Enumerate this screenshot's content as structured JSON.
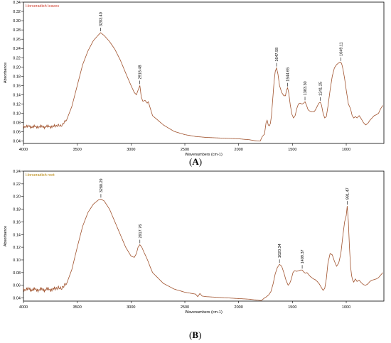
{
  "chart_data": [
    {
      "type": "line",
      "panel_letter": "A",
      "legend": "Horseradish leaves",
      "xlabel": "Wavenumbers (cm-1)",
      "ylabel": "Absorbance",
      "xlim": [
        4000,
        650
      ],
      "ylim": [
        0.035,
        0.34
      ],
      "x_ticks": [
        4000,
        3500,
        3000,
        2500,
        2000,
        1500,
        1000
      ],
      "y_ticks": [
        0.04,
        0.06,
        0.08,
        0.1,
        0.12,
        0.14,
        0.16,
        0.18,
        0.2,
        0.22,
        0.24,
        0.26,
        0.28,
        0.3,
        0.32,
        0.34
      ],
      "y_tick_labels": [
        "0.04",
        "0.06",
        "0.08",
        "0.10",
        "0.12",
        "0.14",
        "0.16",
        "0.18",
        "0.20",
        "0.22",
        "0.24",
        "0.26",
        "0.28",
        "0.30",
        "0.32",
        "0.34"
      ],
      "line_color": "#a0522d",
      "legend_color": "#d04030",
      "grid": false,
      "peak_labels": [
        {
          "x": 3283.4,
          "y": 0.274,
          "text": "3283.40"
        },
        {
          "x": 2918.48,
          "y": 0.16,
          "text": "2918.48"
        },
        {
          "x": 1647.58,
          "y": 0.198,
          "text": "1647.58"
        },
        {
          "x": 1544.65,
          "y": 0.155,
          "text": "1544.65"
        },
        {
          "x": 1383.3,
          "y": 0.125,
          "text": "1383.30"
        },
        {
          "x": 1241.25,
          "y": 0.124,
          "text": "1241.25"
        },
        {
          "x": 1049.11,
          "y": 0.21,
          "text": "1049.11"
        }
      ],
      "series": [
        {
          "x": [
            4000,
            3900,
            3800,
            3700,
            3650,
            3600,
            3550,
            3500,
            3450,
            3400,
            3350,
            3300,
            3283,
            3250,
            3200,
            3150,
            3100,
            3050,
            3000,
            2970,
            2950,
            2935,
            2918,
            2905,
            2890,
            2870,
            2850,
            2840,
            2820,
            2800,
            2700,
            2600,
            2500,
            2400,
            2300,
            2200,
            2100,
            2000,
            1900,
            1850,
            1800,
            1780,
            1760,
            1745,
            1735,
            1725,
            1715,
            1705,
            1695,
            1685,
            1670,
            1660,
            1648,
            1635,
            1620,
            1600,
            1580,
            1565,
            1555,
            1545,
            1535,
            1520,
            1505,
            1490,
            1475,
            1460,
            1445,
            1430,
            1410,
            1395,
            1383,
            1370,
            1355,
            1340,
            1320,
            1300,
            1285,
            1270,
            1255,
            1241,
            1230,
            1215,
            1200,
            1185,
            1170,
            1150,
            1130,
            1110,
            1090,
            1075,
            1060,
            1049,
            1040,
            1030,
            1015,
            1000,
            980,
            960,
            945,
            930,
            915,
            900,
            880,
            860,
            840,
            820,
            800,
            780,
            760,
            740,
            720,
            700,
            680,
            660
          ],
          "y": [
            0.072,
            0.071,
            0.071,
            0.072,
            0.074,
            0.085,
            0.115,
            0.16,
            0.205,
            0.235,
            0.257,
            0.27,
            0.274,
            0.268,
            0.255,
            0.238,
            0.215,
            0.187,
            0.16,
            0.145,
            0.14,
            0.15,
            0.16,
            0.135,
            0.126,
            0.128,
            0.122,
            0.125,
            0.11,
            0.095,
            0.075,
            0.061,
            0.054,
            0.05,
            0.048,
            0.047,
            0.046,
            0.045,
            0.043,
            0.041,
            0.04,
            0.05,
            0.055,
            0.08,
            0.085,
            0.075,
            0.073,
            0.078,
            0.095,
            0.125,
            0.17,
            0.19,
            0.198,
            0.185,
            0.16,
            0.145,
            0.138,
            0.138,
            0.15,
            0.155,
            0.145,
            0.118,
            0.098,
            0.09,
            0.095,
            0.11,
            0.12,
            0.122,
            0.12,
            0.122,
            0.125,
            0.118,
            0.108,
            0.105,
            0.103,
            0.103,
            0.108,
            0.115,
            0.122,
            0.124,
            0.118,
            0.1,
            0.09,
            0.093,
            0.115,
            0.15,
            0.18,
            0.198,
            0.205,
            0.208,
            0.21,
            0.21,
            0.205,
            0.195,
            0.175,
            0.15,
            0.12,
            0.11,
            0.095,
            0.09,
            0.093,
            0.09,
            0.095,
            0.088,
            0.08,
            0.075,
            0.078,
            0.085,
            0.09,
            0.095,
            0.097,
            0.1,
            0.11,
            0.117
          ]
        }
      ]
    },
    {
      "type": "line",
      "panel_letter": "B",
      "legend": "Horseradish root",
      "xlabel": "Wavenumbers (cm-1)",
      "ylabel": "Absorbance",
      "xlim": [
        4000,
        650
      ],
      "ylim": [
        0.035,
        0.24
      ],
      "x_ticks": [
        4000,
        3500,
        3000,
        2500,
        2000,
        1500,
        1000
      ],
      "y_ticks": [
        0.04,
        0.06,
        0.08,
        0.1,
        0.12,
        0.14,
        0.16,
        0.18,
        0.2,
        0.22,
        0.24
      ],
      "y_tick_labels": [
        "0.04",
        "0.06",
        "0.08",
        "0.10",
        "0.12",
        "0.14",
        "0.16",
        "0.18",
        "0.20",
        "0.22",
        "0.24"
      ],
      "line_color": "#a0522d",
      "legend_color": "#b8860b",
      "grid": false,
      "peak_labels": [
        {
          "x": 3280.29,
          "y": 0.196,
          "text": "3280.29"
        },
        {
          "x": 2917.76,
          "y": 0.124,
          "text": "2917.76"
        },
        {
          "x": 1620.34,
          "y": 0.093,
          "text": "1620.34"
        },
        {
          "x": 1409.37,
          "y": 0.084,
          "text": "1409.37"
        },
        {
          "x": 991.47,
          "y": 0.185,
          "text": "991.47"
        }
      ],
      "series": [
        {
          "x": [
            4000,
            3900,
            3800,
            3700,
            3650,
            3600,
            3550,
            3500,
            3450,
            3400,
            3350,
            3300,
            3280,
            3250,
            3200,
            3150,
            3100,
            3050,
            3000,
            2970,
            2950,
            2935,
            2918,
            2900,
            2880,
            2860,
            2840,
            2820,
            2800,
            2700,
            2600,
            2500,
            2400,
            2380,
            2360,
            2340,
            2300,
            2200,
            2100,
            2000,
            1900,
            1850,
            1800,
            1790,
            1780,
            1760,
            1740,
            1720,
            1700,
            1680,
            1660,
            1640,
            1620,
            1600,
            1580,
            1560,
            1540,
            1525,
            1510,
            1495,
            1480,
            1460,
            1440,
            1425,
            1409,
            1395,
            1380,
            1365,
            1350,
            1335,
            1320,
            1305,
            1290,
            1270,
            1250,
            1230,
            1215,
            1200,
            1185,
            1170,
            1150,
            1130,
            1110,
            1090,
            1070,
            1050,
            1030,
            1015,
            1000,
            991,
            980,
            970,
            960,
            950,
            940,
            930,
            915,
            900,
            880,
            860,
            840,
            820,
            800,
            780,
            760,
            740,
            720,
            700,
            680,
            660
          ],
          "y": [
            0.054,
            0.053,
            0.053,
            0.054,
            0.056,
            0.062,
            0.085,
            0.12,
            0.153,
            0.175,
            0.188,
            0.195,
            0.196,
            0.193,
            0.18,
            0.16,
            0.14,
            0.12,
            0.106,
            0.104,
            0.11,
            0.12,
            0.124,
            0.12,
            0.112,
            0.105,
            0.097,
            0.088,
            0.08,
            0.063,
            0.054,
            0.049,
            0.046,
            0.042,
            0.047,
            0.043,
            0.042,
            0.041,
            0.04,
            0.039,
            0.038,
            0.037,
            0.036,
            0.036,
            0.037,
            0.04,
            0.042,
            0.045,
            0.05,
            0.062,
            0.078,
            0.088,
            0.093,
            0.09,
            0.08,
            0.068,
            0.06,
            0.063,
            0.07,
            0.08,
            0.083,
            0.082,
            0.083,
            0.084,
            0.084,
            0.081,
            0.079,
            0.08,
            0.077,
            0.074,
            0.072,
            0.07,
            0.069,
            0.066,
            0.062,
            0.056,
            0.052,
            0.055,
            0.07,
            0.095,
            0.11,
            0.108,
            0.098,
            0.09,
            0.095,
            0.11,
            0.14,
            0.16,
            0.17,
            0.185,
            0.16,
            0.12,
            0.09,
            0.075,
            0.068,
            0.065,
            0.07,
            0.066,
            0.068,
            0.064,
            0.061,
            0.06,
            0.062,
            0.066,
            0.068,
            0.069,
            0.07,
            0.072,
            0.076,
            0.08
          ]
        }
      ]
    }
  ]
}
